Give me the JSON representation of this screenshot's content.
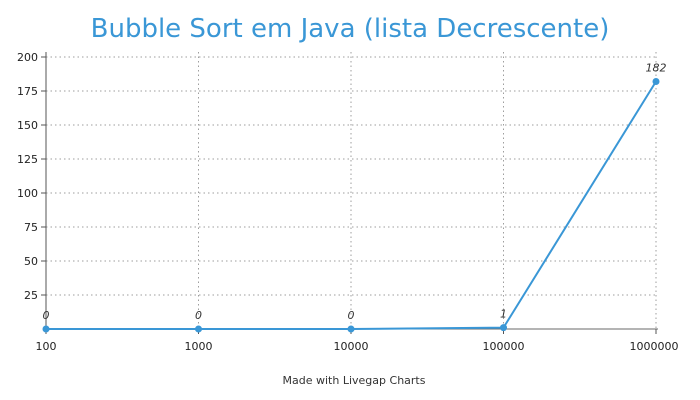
{
  "chart_data": {
    "type": "line",
    "title": "Bubble Sort em Java (lista Decrescente)",
    "xlabel": "",
    "ylabel": "",
    "categories": [
      "100",
      "1000",
      "10000",
      "100000",
      "1000000"
    ],
    "series": [
      {
        "values": [
          0,
          0,
          0,
          1,
          182
        ],
        "data_labels": [
          "0",
          "0",
          "0",
          "1",
          "182"
        ]
      }
    ],
    "ylim": [
      0,
      200
    ],
    "y_ticks": [
      "25",
      "50",
      "75",
      "100",
      "125",
      "150",
      "175",
      "200"
    ],
    "grid": true,
    "legend": "none",
    "line_color": "#3a97d6"
  },
  "footer": "Made with Livegap Charts"
}
